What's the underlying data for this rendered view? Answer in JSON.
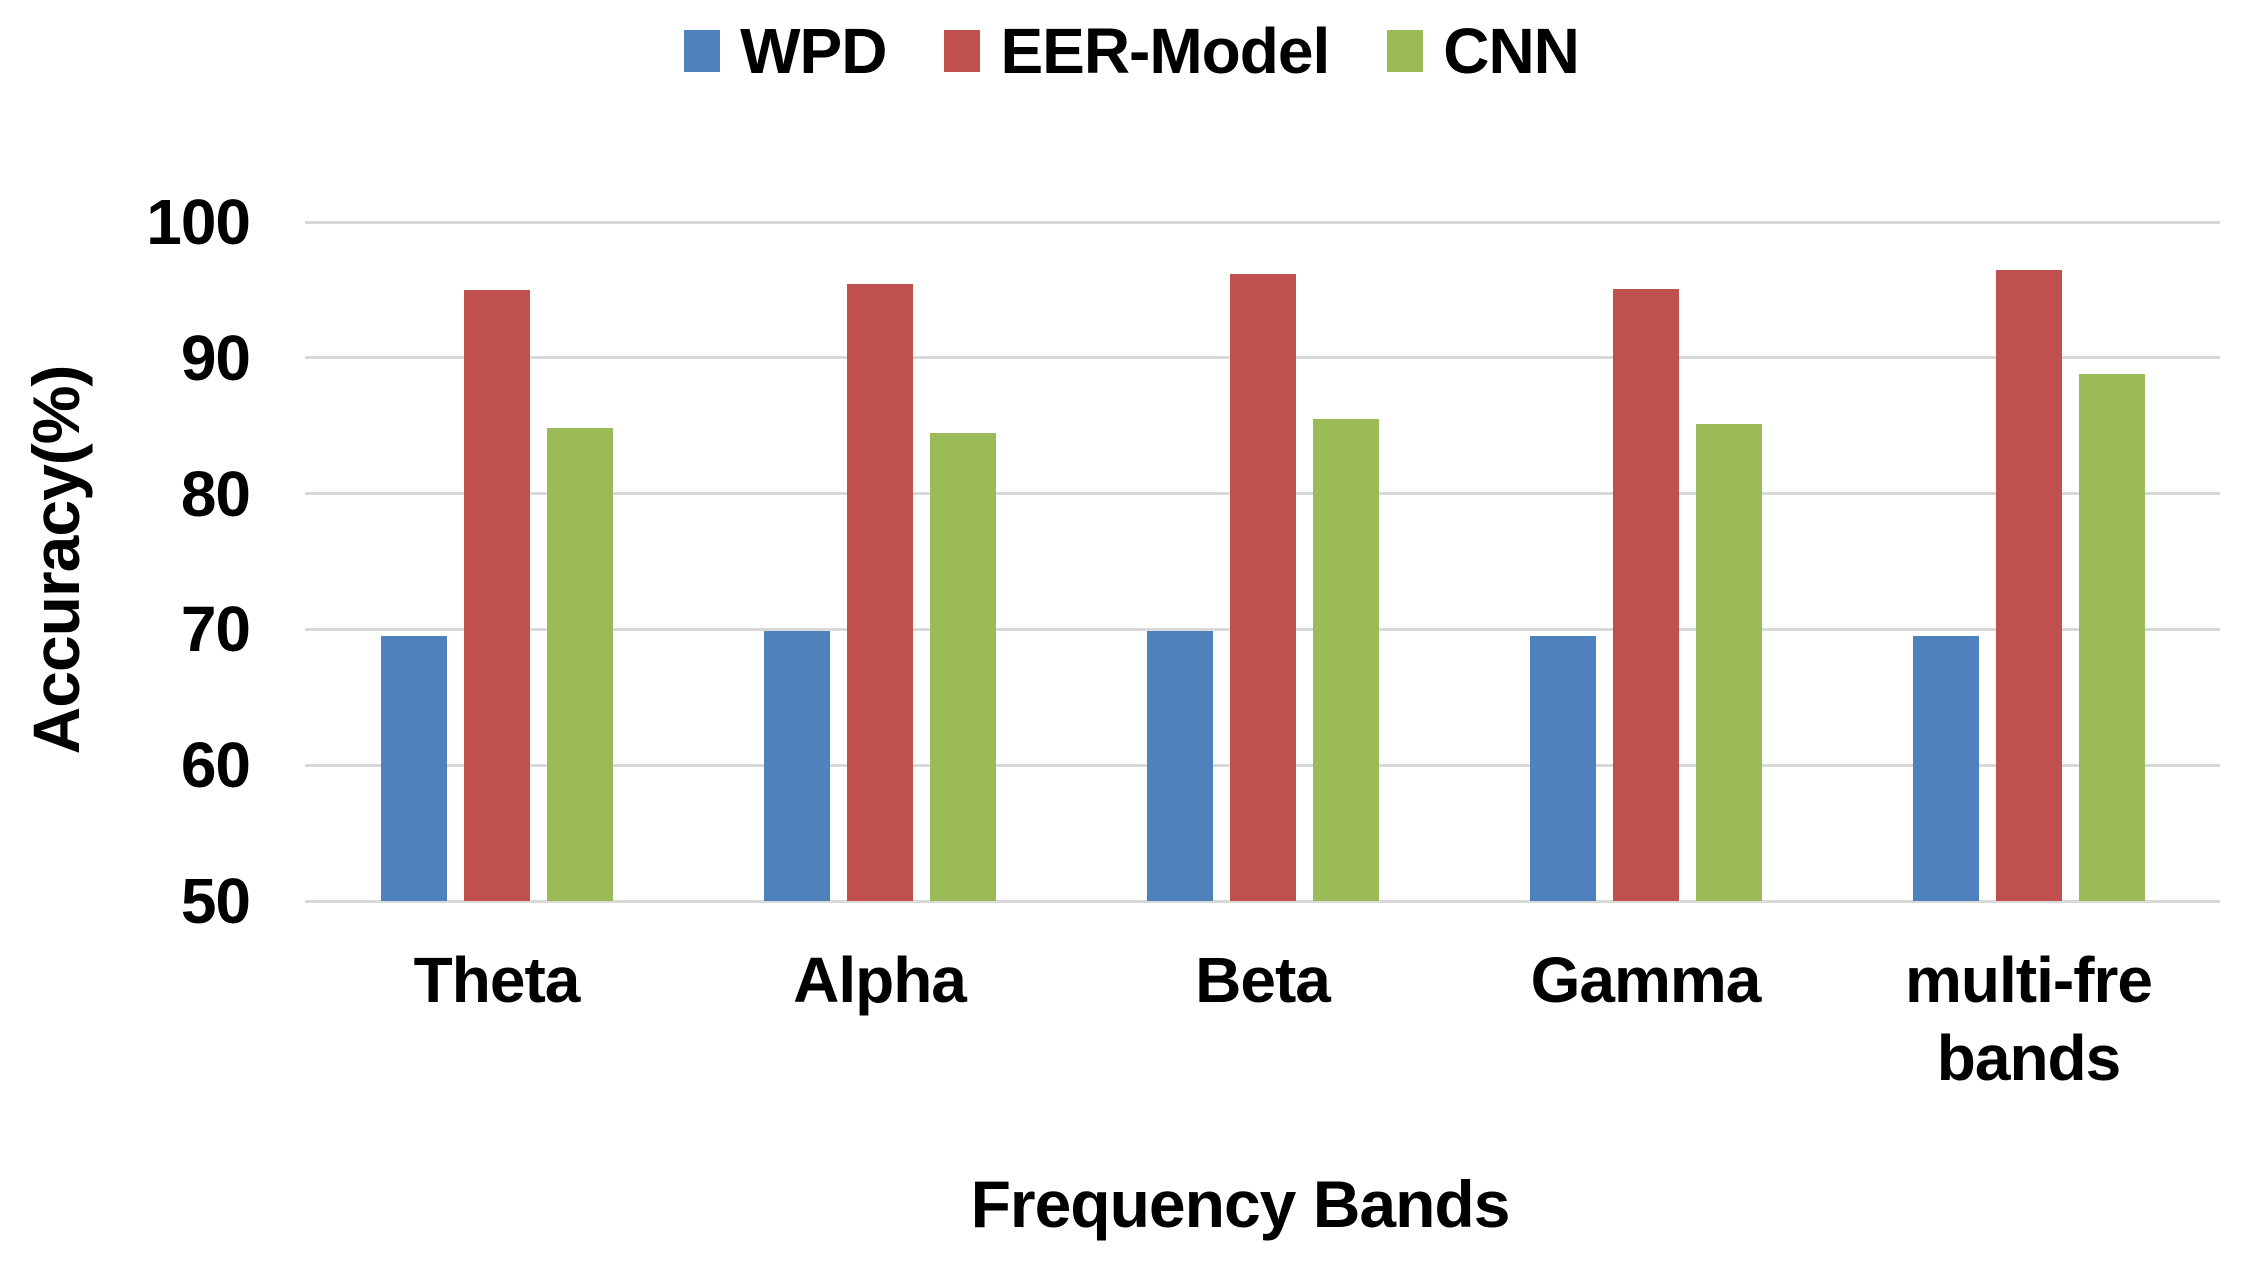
{
  "chart_data": {
    "type": "bar",
    "title": "",
    "categories": [
      "Theta",
      "Alpha",
      "Beta",
      "Gamma",
      "multi-fre bands"
    ],
    "series": [
      {
        "name": "WPD",
        "color": "#4F81BD",
        "values": [
          69.5,
          69.9,
          69.9,
          69.5,
          69.5
        ]
      },
      {
        "name": "EER-Model",
        "color": "#C0504D",
        "values": [
          95.0,
          95.4,
          96.2,
          95.1,
          96.5
        ]
      },
      {
        "name": "CNN",
        "color": "#9BBB59",
        "values": [
          84.8,
          84.5,
          85.5,
          85.1,
          88.8
        ]
      }
    ],
    "xlabel": "Frequency Bands",
    "ylabel": "Accuracy(%)",
    "ylim": [
      50,
      100
    ],
    "yticks": [
      100,
      90,
      80,
      70,
      60,
      50
    ],
    "grid": "horizontal",
    "legend_position": "top"
  },
  "colors": {
    "background": "#FFFFFF",
    "gridline": "#D9D9D9",
    "text": "#000000"
  }
}
